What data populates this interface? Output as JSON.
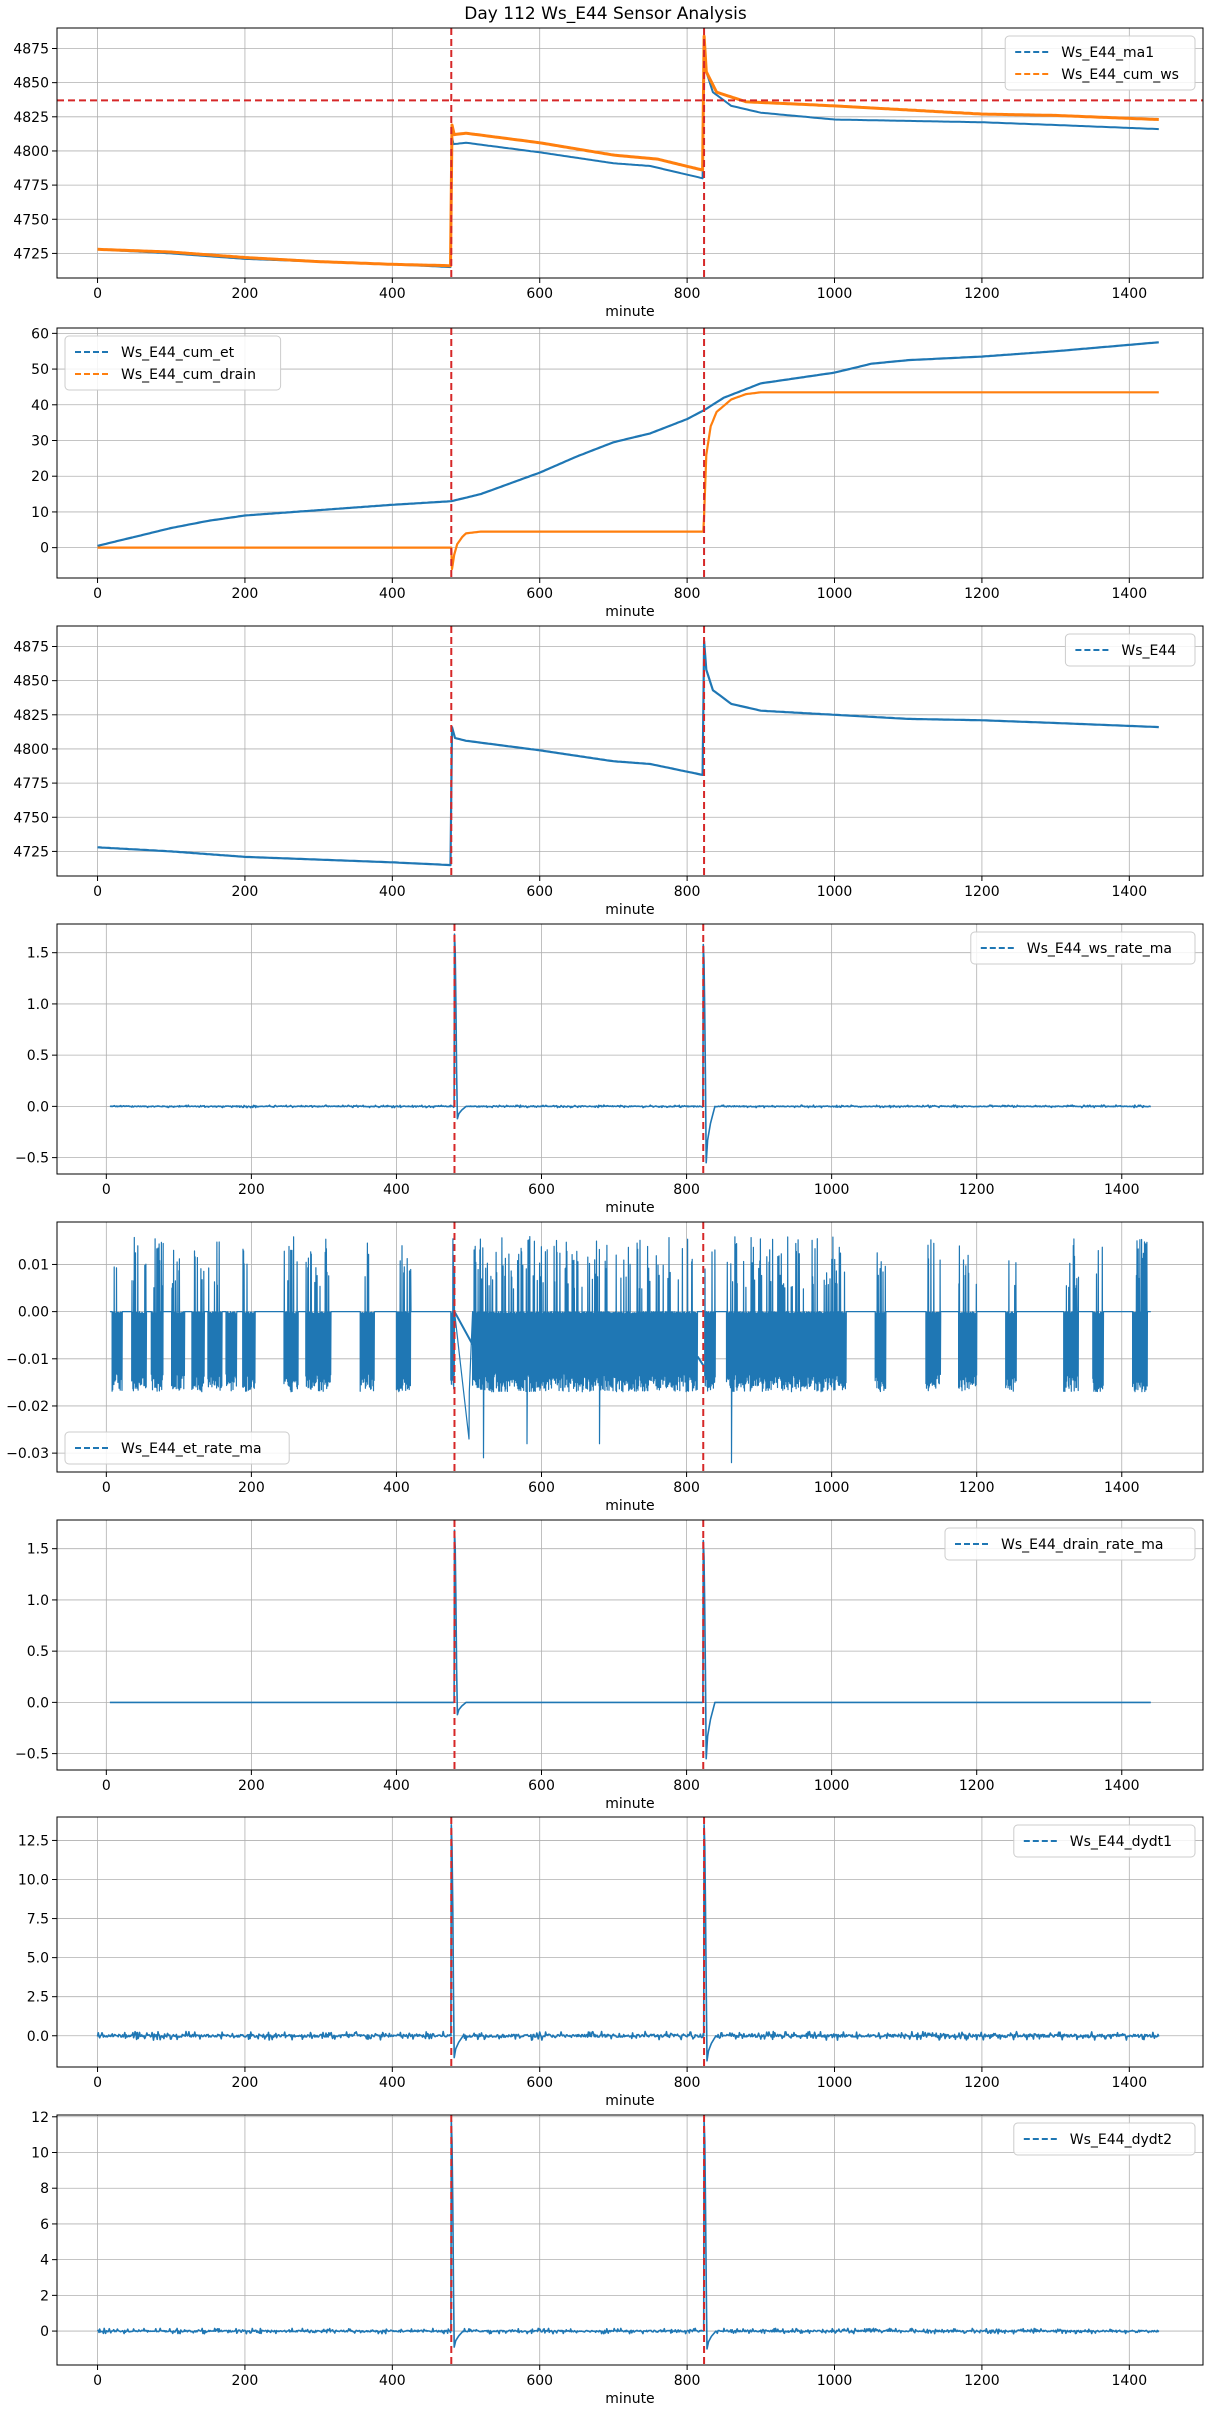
{
  "title": "Day 112 Ws_E44 Sensor Analysis",
  "colors": {
    "blue": "#1f77b4",
    "orange": "#ff7f0e",
    "vline": "#d62728",
    "grid": "#b0b0b0"
  },
  "chart_data": [
    {
      "type": "line",
      "xlabel": "minute",
      "xlim": [
        -55,
        1500
      ],
      "xticks": [
        0,
        200,
        400,
        600,
        800,
        1000,
        1200,
        1400
      ],
      "ylim": [
        4707,
        4890
      ],
      "yticks": [
        4725,
        4750,
        4775,
        4800,
        4825,
        4850,
        4875
      ],
      "yformat": 0,
      "legend": "top-right",
      "vlines": [
        480,
        823
      ],
      "hline": 4837,
      "series": [
        {
          "name": "Ws_E44_ma1",
          "color": "blue",
          "kind": "pts",
          "points": [
            [
              0,
              4728
            ],
            [
              100,
              4725
            ],
            [
              200,
              4721
            ],
            [
              300,
              4719
            ],
            [
              400,
              4717
            ],
            [
              479,
              4715
            ],
            [
              481,
              4810
            ],
            [
              483,
              4805
            ],
            [
              500,
              4806
            ],
            [
              600,
              4799
            ],
            [
              700,
              4791
            ],
            [
              750,
              4789
            ],
            [
              821,
              4780
            ],
            [
              823,
              4878
            ],
            [
              826,
              4858
            ],
            [
              835,
              4843
            ],
            [
              860,
              4833
            ],
            [
              900,
              4828
            ],
            [
              1000,
              4823
            ],
            [
              1100,
              4822
            ],
            [
              1200,
              4821
            ],
            [
              1300,
              4819
            ],
            [
              1440,
              4816
            ]
          ]
        },
        {
          "name": "Ws_E44_cum_ws",
          "color": "orange",
          "kind": "pts",
          "lw": 3,
          "points": [
            [
              0,
              4728
            ],
            [
              100,
              4726
            ],
            [
              200,
              4722
            ],
            [
              300,
              4719
            ],
            [
              400,
              4717
            ],
            [
              479,
              4716
            ],
            [
              481,
              4819
            ],
            [
              484,
              4812
            ],
            [
              500,
              4813
            ],
            [
              600,
              4806
            ],
            [
              700,
              4797
            ],
            [
              760,
              4794
            ],
            [
              821,
              4786
            ],
            [
              823,
              4884
            ],
            [
              826,
              4858
            ],
            [
              840,
              4843
            ],
            [
              880,
              4836
            ],
            [
              1000,
              4833
            ],
            [
              1100,
              4830
            ],
            [
              1200,
              4827
            ],
            [
              1300,
              4826
            ],
            [
              1440,
              4823
            ]
          ]
        }
      ]
    },
    {
      "type": "line",
      "xlabel": "minute",
      "xlim": [
        -55,
        1500
      ],
      "xticks": [
        0,
        200,
        400,
        600,
        800,
        1000,
        1200,
        1400
      ],
      "ylim": [
        -8.5,
        61.5
      ],
      "yticks": [
        0,
        10,
        20,
        30,
        40,
        50,
        60
      ],
      "yformat": 0,
      "legend": "top-left",
      "vlines": [
        480,
        823
      ],
      "series": [
        {
          "name": "Ws_E44_cum_et",
          "color": "blue",
          "kind": "pts",
          "lw": 2.2,
          "points": [
            [
              0,
              0.5
            ],
            [
              50,
              3
            ],
            [
              100,
              5.5
            ],
            [
              150,
              7.5
            ],
            [
              200,
              9
            ],
            [
              300,
              10.5
            ],
            [
              400,
              12
            ],
            [
              480,
              13
            ],
            [
              520,
              15
            ],
            [
              560,
              18
            ],
            [
              600,
              21
            ],
            [
              650,
              25.5
            ],
            [
              700,
              29.5
            ],
            [
              750,
              32
            ],
            [
              800,
              36
            ],
            [
              823,
              38.5
            ],
            [
              850,
              42
            ],
            [
              900,
              46
            ],
            [
              950,
              47.5
            ],
            [
              1000,
              49
            ],
            [
              1050,
              51.5
            ],
            [
              1100,
              52.5
            ],
            [
              1200,
              53.5
            ],
            [
              1300,
              55
            ],
            [
              1440,
              57.5
            ]
          ]
        },
        {
          "name": "Ws_E44_cum_drain",
          "color": "orange",
          "kind": "pts",
          "lw": 2.2,
          "points": [
            [
              0,
              0
            ],
            [
              479,
              0
            ],
            [
              480,
              0
            ],
            [
              481,
              -6
            ],
            [
              484,
              -2
            ],
            [
              488,
              1
            ],
            [
              495,
              3
            ],
            [
              500,
              4
            ],
            [
              520,
              4.5
            ],
            [
              700,
              4.5
            ],
            [
              822,
              4.5
            ],
            [
              823,
              9
            ],
            [
              826,
              26
            ],
            [
              832,
              34
            ],
            [
              840,
              38
            ],
            [
              860,
              41.5
            ],
            [
              880,
              43
            ],
            [
              900,
              43.5
            ],
            [
              1440,
              43.5
            ]
          ]
        }
      ]
    },
    {
      "type": "line",
      "xlabel": "minute",
      "xlim": [
        -55,
        1500
      ],
      "xticks": [
        0,
        200,
        400,
        600,
        800,
        1000,
        1200,
        1400
      ],
      "ylim": [
        4707,
        4890
      ],
      "yticks": [
        4725,
        4750,
        4775,
        4800,
        4825,
        4850,
        4875
      ],
      "yformat": 0,
      "legend": "top-right",
      "vlines": [
        480,
        823
      ],
      "series": [
        {
          "name": "Ws_E44",
          "color": "blue",
          "kind": "pts",
          "lw": 2.2,
          "points": [
            [
              0,
              4728
            ],
            [
              100,
              4725
            ],
            [
              200,
              4721
            ],
            [
              300,
              4719
            ],
            [
              400,
              4717
            ],
            [
              479,
              4715
            ],
            [
              481,
              4816
            ],
            [
              485,
              4808
            ],
            [
              500,
              4806
            ],
            [
              600,
              4799
            ],
            [
              700,
              4791
            ],
            [
              750,
              4789
            ],
            [
              821,
              4781
            ],
            [
              823,
              4879
            ],
            [
              826,
              4858
            ],
            [
              835,
              4843
            ],
            [
              860,
              4833
            ],
            [
              900,
              4828
            ],
            [
              1000,
              4825
            ],
            [
              1100,
              4822
            ],
            [
              1200,
              4821
            ],
            [
              1300,
              4819
            ],
            [
              1440,
              4816
            ]
          ]
        }
      ]
    },
    {
      "type": "line",
      "xlabel": "minute",
      "xlim": [
        -68,
        1512
      ],
      "xticks": [
        0,
        200,
        400,
        600,
        800,
        1000,
        1200,
        1400
      ],
      "ylim": [
        -0.66,
        1.78
      ],
      "yticks": [
        -0.5,
        0.0,
        0.5,
        1.0,
        1.5
      ],
      "yformat": 1,
      "legend": "top-right",
      "vlines": [
        480,
        823
      ],
      "series": [
        {
          "name": "Ws_E44_ws_rate_ma",
          "color": "blue",
          "kind": "noise",
          "lw": 1.6,
          "base": 0,
          "amp": 0.012,
          "start": 5,
          "end": 1440,
          "spikes": [
            [
              480,
              1.68,
              -0.12
            ],
            [
              823,
              1.58,
              -0.55
            ]
          ]
        }
      ]
    },
    {
      "type": "line",
      "xlabel": "minute",
      "xlim": [
        -68,
        1512
      ],
      "xticks": [
        0,
        200,
        400,
        600,
        800,
        1000,
        1200,
        1400
      ],
      "ylim": [
        -0.034,
        0.019
      ],
      "yticks": [
        -0.03,
        -0.02,
        -0.01,
        0.0,
        0.01
      ],
      "yformat": 2,
      "legend": "bottom-left",
      "vlines": [
        480,
        823
      ],
      "series": [
        {
          "name": "Ws_E44_et_rate_ma",
          "color": "blue",
          "kind": "bursts",
          "lw": 1.2,
          "start": 5,
          "end": 1440,
          "lo": -0.017,
          "hi": 0.016,
          "bursts": [
            [
              8,
              22
            ],
            [
              35,
              55
            ],
            [
              62,
              78
            ],
            [
              90,
              108
            ],
            [
              118,
              135
            ],
            [
              140,
              160
            ],
            [
              165,
              180
            ],
            [
              188,
              205
            ],
            [
              245,
              265
            ],
            [
              275,
              310
            ],
            [
              350,
              370
            ],
            [
              400,
              420
            ],
            [
              475,
              480
            ],
            [
              505,
              815
            ],
            [
              825,
              840
            ],
            [
              855,
              1020
            ],
            [
              1060,
              1075
            ],
            [
              1130,
              1150
            ],
            [
              1175,
              1200
            ],
            [
              1240,
              1255
            ],
            [
              1320,
              1340
            ],
            [
              1360,
              1375
            ],
            [
              1415,
              1435
            ]
          ],
          "dips": [
            [
              500,
              -0.027
            ],
            [
              520,
              -0.031
            ],
            [
              580,
              -0.028
            ],
            [
              680,
              -0.028
            ],
            [
              862,
              -0.032
            ]
          ]
        }
      ]
    },
    {
      "type": "line",
      "xlabel": "minute",
      "xlim": [
        -68,
        1512
      ],
      "xticks": [
        0,
        200,
        400,
        600,
        800,
        1000,
        1200,
        1400
      ],
      "ylim": [
        -0.66,
        1.78
      ],
      "yticks": [
        -0.5,
        0.0,
        0.5,
        1.0,
        1.5
      ],
      "yformat": 1,
      "legend": "top-right",
      "vlines": [
        480,
        823
      ],
      "series": [
        {
          "name": "Ws_E44_drain_rate_ma",
          "color": "blue",
          "kind": "noise",
          "lw": 1.6,
          "base": 0,
          "amp": 0.0,
          "start": 5,
          "end": 1440,
          "spikes": [
            [
              480,
              1.68,
              -0.12
            ],
            [
              823,
              1.58,
              -0.55
            ]
          ]
        }
      ]
    },
    {
      "type": "line",
      "xlabel": "minute",
      "xlim": [
        -55,
        1500
      ],
      "xticks": [
        0,
        200,
        400,
        600,
        800,
        1000,
        1200,
        1400
      ],
      "ylim": [
        -2.0,
        14.0
      ],
      "yticks": [
        0.0,
        2.5,
        5.0,
        7.5,
        10.0,
        12.5
      ],
      "yformat": 1,
      "legend": "top-right",
      "vlines": [
        480,
        823
      ],
      "series": [
        {
          "name": "Ws_E44_dydt1",
          "color": "blue",
          "kind": "noise",
          "lw": 1.6,
          "base": 0,
          "amp": 0.28,
          "start": 0,
          "end": 1440,
          "spikes": [
            [
              480,
              13.5,
              -1.4
            ],
            [
              823,
              13.5,
              -1.6
            ]
          ]
        }
      ]
    },
    {
      "type": "line",
      "xlabel": "minute",
      "xlim": [
        -55,
        1500
      ],
      "xticks": [
        0,
        200,
        400,
        600,
        800,
        1000,
        1200,
        1400
      ],
      "ylim": [
        -1.9,
        12.1
      ],
      "yticks": [
        0,
        2,
        4,
        6,
        8,
        10,
        12
      ],
      "yformat": 0,
      "legend": "top-right",
      "vlines": [
        480,
        823
      ],
      "series": [
        {
          "name": "Ws_E44_dydt2",
          "color": "blue",
          "kind": "noise",
          "lw": 1.6,
          "base": 0,
          "amp": 0.15,
          "start": 0,
          "end": 1440,
          "spikes": [
            [
              480,
              11.8,
              -0.9
            ],
            [
              823,
              11.8,
              -1.0
            ]
          ]
        }
      ]
    }
  ]
}
